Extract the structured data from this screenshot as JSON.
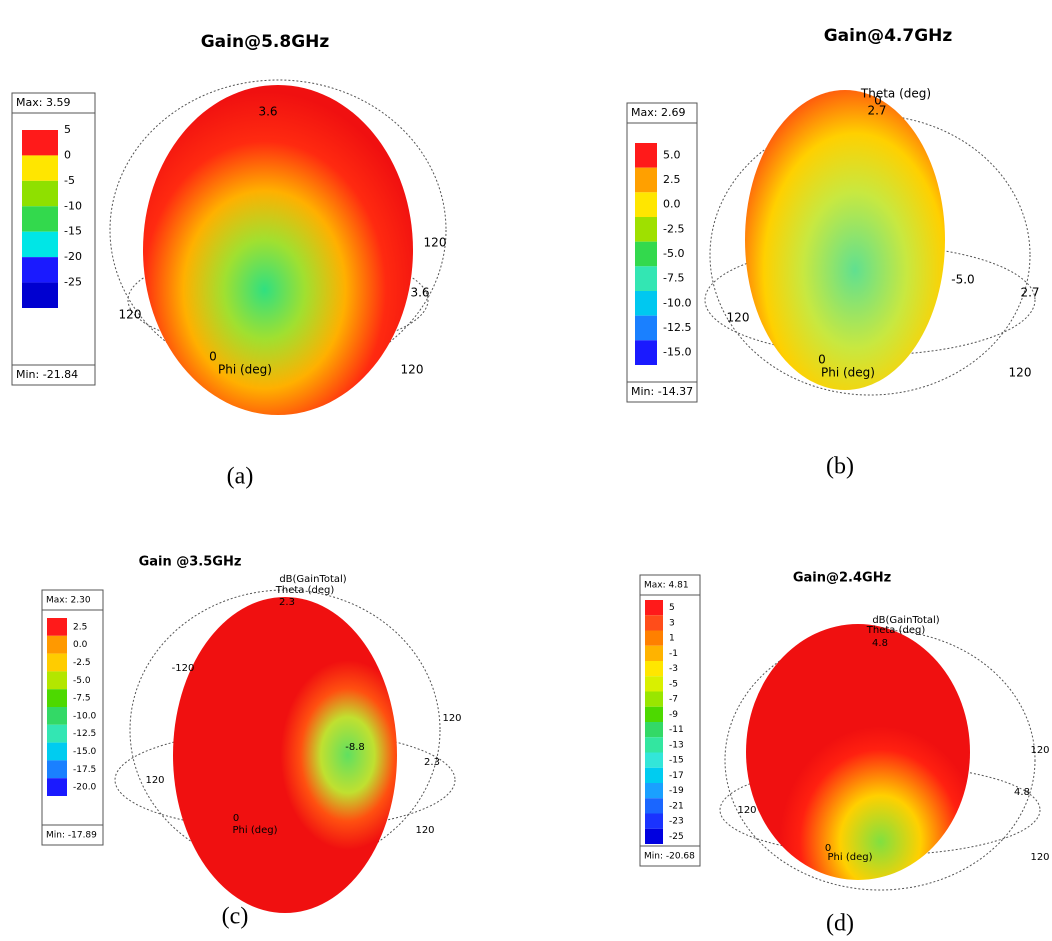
{
  "panels": [
    {
      "title": "Gain@5.8GHz",
      "max": "Max: 3.59",
      "min": "Min: -21.84",
      "scale": [
        "5",
        "0",
        "-5",
        "-10",
        "-15",
        "-20",
        "-25"
      ],
      "colors": [
        "#ff1a1a",
        "#ffe600",
        "#8fe000",
        "#33d94d",
        "#00e6e6",
        "#1a1aff",
        "#0000d0"
      ],
      "annotations": [
        "3.6",
        "120",
        "3.6",
        "120",
        "0",
        "Phi (deg)",
        "120"
      ],
      "caption": "(a)"
    },
    {
      "title": "Gain@4.7GHz",
      "max": "Max: 2.69",
      "min": "Min: -14.37",
      "scale": [
        "5.0",
        "2.5",
        "0.0",
        "-2.5",
        "-5.0",
        "-7.5",
        "-10.0",
        "-12.5",
        "-15.0"
      ],
      "colors": [
        "#ff1a1a",
        "#ffa000",
        "#ffe600",
        "#9fe000",
        "#33d94d",
        "#33e6b3",
        "#00c8f0",
        "#1a80ff",
        "#1a1aff"
      ],
      "annotations": [
        "Theta (deg)",
        "0",
        "2.7",
        "-5.0",
        "2.7",
        "120",
        "0",
        "Phi (deg)",
        "120"
      ],
      "caption": "(b)"
    },
    {
      "title": "Gain @3.5GHz",
      "max": "Max: 2.30",
      "min": "Min: -17.89",
      "scale": [
        "2.5",
        "0.0",
        "-2.5",
        "-5.0",
        "-7.5",
        "-10.0",
        "-12.5",
        "-15.0",
        "-17.5",
        "-20.0"
      ],
      "colors": [
        "#ff1a1a",
        "#ff9900",
        "#ffcc00",
        "#b3e600",
        "#4dd900",
        "#33d966",
        "#33e6b3",
        "#00ccf0",
        "#1a80ff",
        "#1a1aff"
      ],
      "annotations": [
        "dB(GainTotal)",
        "Theta (deg)",
        "2.3",
        "-120",
        "120",
        "-8.8",
        "2.3",
        "120",
        "0",
        "Phi (deg)",
        "120"
      ],
      "caption": "(c)"
    },
    {
      "title": "Gain@2.4GHz",
      "max": "Max: 4.81",
      "min": "Min: -20.68",
      "scale": [
        "5",
        "3",
        "1",
        "-1",
        "-3",
        "-5",
        "-7",
        "-9",
        "-11",
        "-13",
        "-15",
        "-17",
        "-19",
        "-21",
        "-23",
        "-25"
      ],
      "colors": [
        "#ff1a1a",
        "#ff4d1a",
        "#ff8000",
        "#ffb300",
        "#ffe600",
        "#d9f000",
        "#99e600",
        "#4dd900",
        "#33d966",
        "#33e6a0",
        "#33e6d9",
        "#00ccf0",
        "#1aa0ff",
        "#1a66ff",
        "#1a33ff",
        "#0000e0"
      ],
      "annotations": [
        "dB(GainTotal)",
        "Theta (deg)",
        "4.8",
        "120",
        "4.8",
        "120",
        "0",
        "Phi (deg)",
        "120"
      ],
      "caption": "(d)"
    }
  ]
}
